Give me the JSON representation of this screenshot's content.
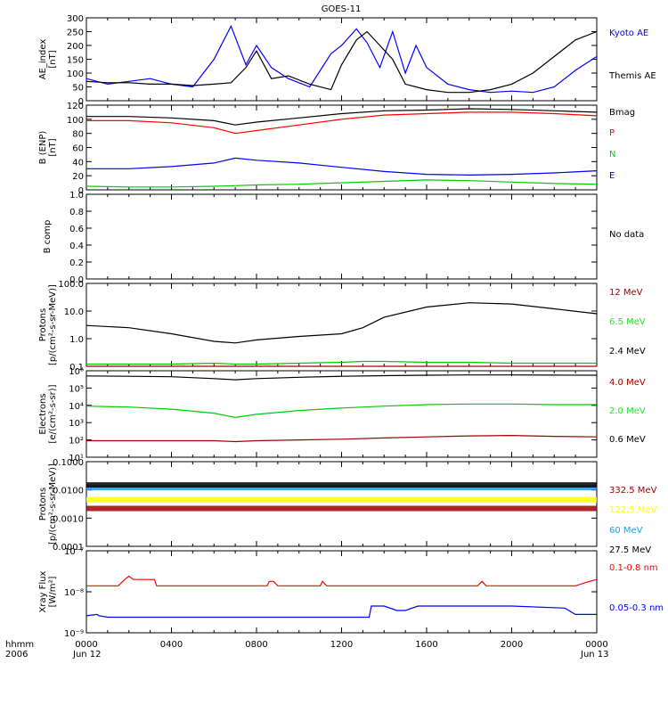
{
  "title": "GOES-11",
  "footer": {
    "hhmm": "hhmm",
    "year": "2006",
    "x_ticks": [
      "0000",
      "0400",
      "0800",
      "1200",
      "1600",
      "2000",
      "0000"
    ],
    "date_start": "Jun 12",
    "date_end": "Jun 13"
  },
  "colors": {
    "black": "#000000",
    "blue": "#0000ff",
    "red": "#ff0000",
    "green": "#00cc00",
    "darkred": "#a00000",
    "lime": "#33dd33",
    "yellow": "#ffff00",
    "cyan": "#00aaff"
  },
  "chart_data": [
    {
      "type": "line",
      "ylabel": [
        "AE_index",
        "[nT]"
      ],
      "yticks": [
        "300",
        "250",
        "200",
        "150",
        "100",
        "50",
        "0"
      ],
      "ylim": [
        0,
        300
      ],
      "x_hours": [
        0,
        1,
        2,
        3,
        4,
        5,
        6,
        6.8,
        7.5,
        8,
        8.7,
        9.5,
        10.5,
        11.5,
        12,
        12.7,
        13.2,
        13.8,
        14.4,
        15,
        15.5,
        16,
        17,
        18,
        19,
        20,
        21,
        22,
        23,
        24
      ],
      "series": [
        {
          "name": "Kyoto AE",
          "color": "blue",
          "values": [
            80,
            60,
            70,
            80,
            60,
            50,
            150,
            270,
            130,
            200,
            120,
            80,
            50,
            170,
            200,
            260,
            210,
            120,
            250,
            100,
            200,
            120,
            60,
            40,
            30,
            35,
            30,
            50,
            110,
            160
          ]
        },
        {
          "name": "Themis AE",
          "color": "black",
          "values": [
            70,
            65,
            65,
            60,
            60,
            55,
            60,
            65,
            120,
            180,
            80,
            90,
            60,
            40,
            130,
            220,
            250,
            200,
            150,
            60,
            50,
            40,
            30,
            30,
            40,
            60,
            100,
            160,
            220,
            250
          ]
        }
      ]
    },
    {
      "type": "line",
      "ylabel": [
        "B (ENP)",
        "[nT]"
      ],
      "yticks": [
        "120",
        "100",
        "80",
        "60",
        "40",
        "20",
        "0"
      ],
      "ylim": [
        0,
        120
      ],
      "x_hours": [
        0,
        2,
        4,
        6,
        7,
        8,
        10,
        12,
        14,
        16,
        18,
        20,
        22,
        24
      ],
      "series": [
        {
          "name": "Bmag",
          "color": "black",
          "values": [
            104,
            104,
            102,
            98,
            92,
            96,
            102,
            108,
            112,
            113,
            115,
            114,
            112,
            110
          ]
        },
        {
          "name": "P",
          "color": "red",
          "values": [
            98,
            98,
            95,
            88,
            80,
            84,
            92,
            100,
            106,
            108,
            110,
            110,
            108,
            105
          ]
        },
        {
          "name": "N",
          "color": "green",
          "values": [
            5,
            4,
            4,
            5,
            6,
            7,
            8,
            10,
            12,
            14,
            13,
            11,
            9,
            8
          ]
        },
        {
          "name": "E",
          "color": "blue",
          "values": [
            30,
            30,
            33,
            38,
            45,
            42,
            38,
            32,
            26,
            22,
            21,
            22,
            24,
            27
          ]
        }
      ]
    },
    {
      "type": "line",
      "ylabel": [
        "B comp"
      ],
      "yticks": [
        "1.0",
        "0.8",
        "0.6",
        "0.4",
        "0.2",
        "0.0"
      ],
      "ylim": [
        0,
        1
      ],
      "note": "No data",
      "series": []
    },
    {
      "type": "line",
      "ylabel": [
        "Protons",
        "[p/(cm²-s-sr-MeV)]"
      ],
      "yticks": [
        "100.0",
        "10.0",
        "1.0",
        "0.1"
      ],
      "ylim": [
        0.1,
        100
      ],
      "log": true,
      "x_hours": [
        0,
        2,
        4,
        6,
        7,
        8,
        10,
        12,
        13,
        14,
        16,
        18,
        20,
        22,
        24
      ],
      "series": [
        {
          "name": "12 MeV",
          "color": "darkred",
          "values": [
            0.1,
            0.1,
            0.1,
            0.1,
            0.1,
            0.1,
            0.1,
            0.1,
            0.1,
            0.1,
            0.1,
            0.1,
            0.1,
            0.1,
            0.1
          ]
        },
        {
          "name": "6.5 MeV",
          "color": "green",
          "values": [
            0.12,
            0.12,
            0.12,
            0.13,
            0.12,
            0.12,
            0.13,
            0.14,
            0.15,
            0.15,
            0.14,
            0.14,
            0.13,
            0.13,
            0.13
          ]
        },
        {
          "name": "2.4 MeV",
          "color": "black",
          "values": [
            3.0,
            2.5,
            1.5,
            0.8,
            0.7,
            0.9,
            1.2,
            1.5,
            2.5,
            6,
            14,
            20,
            18,
            12,
            8
          ]
        }
      ]
    },
    {
      "type": "line",
      "ylabel": [
        "Electrons",
        "[e/(cm²-s-sr)]"
      ],
      "yticks": [
        "10⁶",
        "10⁵",
        "10⁴",
        "10³",
        "10²",
        "10¹"
      ],
      "ylim": [
        10,
        1000000
      ],
      "log": true,
      "x_hours": [
        0,
        2,
        4,
        6,
        7,
        8,
        10,
        12,
        14,
        16,
        18,
        20,
        22,
        24
      ],
      "series": [
        {
          "name": "4.0 MeV",
          "color": "darkred",
          "values": [
            90,
            90,
            90,
            90,
            80,
            90,
            100,
            110,
            130,
            150,
            170,
            180,
            160,
            150
          ]
        },
        {
          "name": "2.0 MeV",
          "color": "green",
          "values": [
            9000,
            8000,
            6000,
            3500,
            2000,
            3000,
            5000,
            7000,
            9000,
            11000,
            12000,
            12000,
            11000,
            11000
          ]
        },
        {
          "name": "0.6 MeV",
          "color": "black",
          "values": [
            500000,
            480000,
            450000,
            350000,
            300000,
            350000,
            420000,
            480000,
            520000,
            550000,
            570000,
            570000,
            560000,
            550000
          ]
        }
      ]
    },
    {
      "type": "line",
      "ylabel": [
        "Protons",
        "[p/(cm²-s-sr-MeV)]"
      ],
      "yticks": [
        "0.1000",
        "0.0100",
        "0.0010",
        "0.0001"
      ],
      "ylim": [
        0.0001,
        0.1
      ],
      "log": true,
      "x_hours": [
        0,
        6,
        12,
        18,
        24
      ],
      "series": [
        {
          "name": "332.5 MeV",
          "color": "darkred",
          "values": [
            0.0022,
            0.0022,
            0.0022,
            0.0022,
            0.0022
          ]
        },
        {
          "name": "122.5 MeV",
          "color": "yellow",
          "values": [
            0.0045,
            0.0045,
            0.0045,
            0.0045,
            0.0045
          ]
        },
        {
          "name": "60 MeV",
          "color": "cyan",
          "values": [
            0.012,
            0.012,
            0.012,
            0.012,
            0.012
          ]
        },
        {
          "name": "27.5 MeV",
          "color": "black",
          "values": [
            0.015,
            0.015,
            0.015,
            0.015,
            0.015
          ]
        }
      ]
    },
    {
      "type": "line",
      "ylabel": [
        "Xray  Flux",
        "[W/m²]"
      ],
      "yticks": [
        "10⁻⁷",
        "10⁻⁸",
        "10⁻⁹"
      ],
      "ylim": [
        1e-09,
        1e-07
      ],
      "log": true,
      "x_hours": [
        0,
        1.5,
        1.8,
        2,
        2.2,
        3.2,
        3.3,
        8.5,
        8.6,
        8.8,
        9,
        11,
        11.1,
        11.3,
        18.4,
        18.6,
        18.8,
        23,
        23.5,
        24
      ],
      "series": [
        {
          "name": "0.1-0.8 nm",
          "color": "red",
          "values": [
            1.4e-08,
            1.4e-08,
            2e-08,
            2.4e-08,
            2e-08,
            2e-08,
            1.4e-08,
            1.4e-08,
            1.8e-08,
            1.8e-08,
            1.4e-08,
            1.4e-08,
            1.8e-08,
            1.4e-08,
            1.4e-08,
            1.8e-08,
            1.4e-08,
            1.4e-08,
            1.7e-08,
            2e-08
          ]
        },
        {
          "name": "0.05-0.3 nm",
          "color": "blue",
          "x_hours_override": [
            0,
            0.5,
            0.6,
            1,
            13.3,
            13.4,
            14,
            14.6,
            15,
            15.6,
            16.5,
            20,
            22.5,
            23,
            24
          ],
          "values": [
            2.6e-09,
            2.8e-09,
            2.6e-09,
            2.4e-09,
            2.4e-09,
            4.5e-09,
            4.5e-09,
            3.5e-09,
            3.5e-09,
            4.5e-09,
            4.5e-09,
            4.5e-09,
            4e-09,
            2.8e-09,
            2.8e-09
          ]
        }
      ]
    }
  ]
}
